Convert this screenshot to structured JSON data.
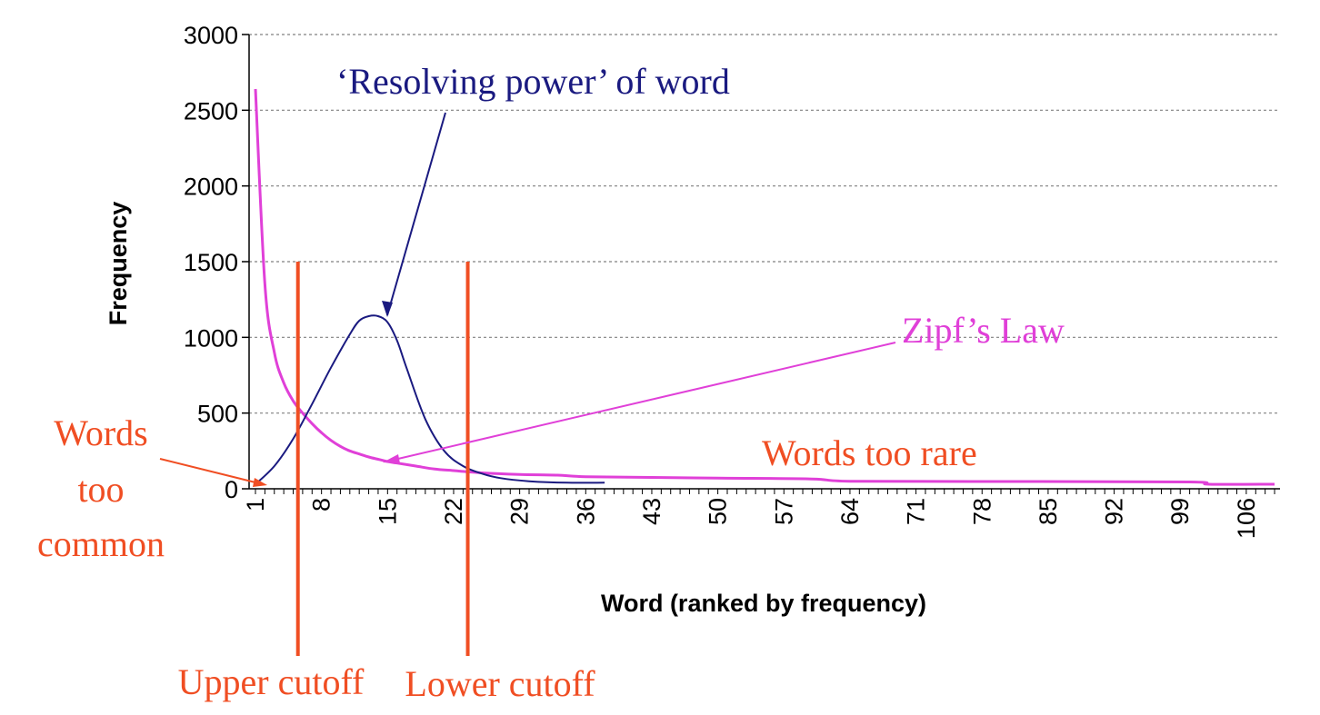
{
  "chart_data": {
    "type": "line",
    "title": "",
    "xlabel": "Word (ranked by frequency)",
    "ylabel": "Frequency",
    "xlim": [
      1,
      109
    ],
    "ylim": [
      0,
      3000
    ],
    "grid": "horizontal-dashed",
    "x_ticks": [
      1,
      8,
      15,
      22,
      29,
      36,
      43,
      50,
      57,
      64,
      71,
      78,
      85,
      92,
      99,
      106
    ],
    "y_ticks": [
      0,
      500,
      1000,
      1500,
      2000,
      2500,
      3000
    ],
    "series": [
      {
        "name": "Zipf's Law",
        "color": "#e040d8",
        "x": [
          1,
          2,
          3,
          4,
          5,
          6,
          7,
          8,
          9,
          10,
          11,
          12,
          13,
          14,
          15,
          16,
          18,
          20,
          22,
          25,
          29,
          33,
          36,
          43,
          50,
          60,
          64,
          80,
          100,
          102,
          109
        ],
        "y": [
          2640,
          1350,
          900,
          700,
          580,
          500,
          430,
          370,
          320,
          280,
          250,
          230,
          210,
          195,
          180,
          170,
          150,
          130,
          120,
          105,
          95,
          90,
          80,
          75,
          70,
          65,
          50,
          48,
          45,
          30,
          30
        ]
      },
      {
        "name": "",
        "color": "#1a1a80",
        "x": [
          1,
          3,
          5,
          7,
          9,
          11,
          12,
          13,
          14,
          15,
          16,
          17,
          19,
          21,
          23,
          25,
          27,
          30,
          34,
          38
        ],
        "y": [
          30,
          150,
          330,
          560,
          800,
          1020,
          1110,
          1140,
          1140,
          1100,
          980,
          800,
          460,
          250,
          150,
          100,
          70,
          50,
          40,
          40
        ]
      }
    ],
    "cutoffs": [
      {
        "label": "Upper cutoff",
        "x": 5.5,
        "y_top": 1500
      },
      {
        "label": "Lower cutoff",
        "x": 23.5,
        "y_top": 1500
      }
    ],
    "annotations": {
      "resolving_power": "‘Resolving power’ of word",
      "zipf": "Zipf’s Law",
      "too_common": [
        "Words",
        "too",
        "common"
      ],
      "too_rare": "Words too rare"
    },
    "colors": {
      "zipf": "#e040d8",
      "resolving": "#1a1a80",
      "cutoff": "#f04e23",
      "grid": "#808080"
    }
  }
}
